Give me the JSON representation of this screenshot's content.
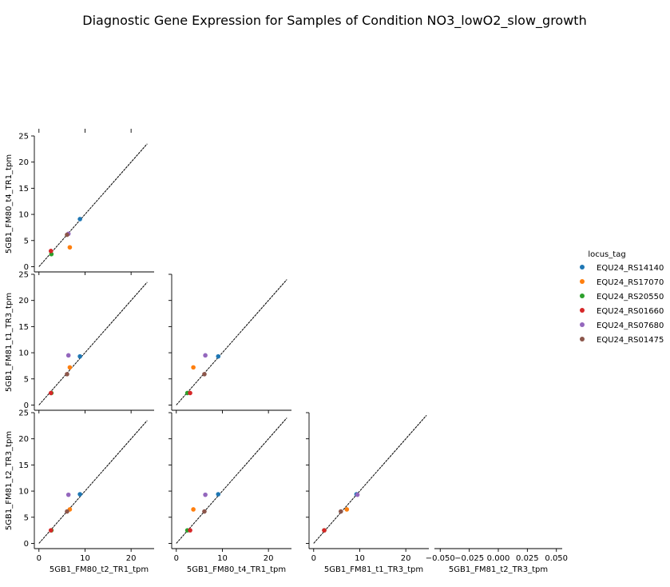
{
  "chart_data": {
    "type": "scatter",
    "title": "Diagnostic Gene Expression for Samples of Condition NO3_lowO2_slow_growth",
    "legend": {
      "title": "locus_tag",
      "placement": "right",
      "entries": [
        {
          "name": "EQU24_RS14140",
          "color": "#1f77b4"
        },
        {
          "name": "EQU24_RS17070",
          "color": "#ff7f0e"
        },
        {
          "name": "EQU24_RS20550",
          "color": "#2ca02c"
        },
        {
          "name": "EQU24_RS01660",
          "color": "#d62728"
        },
        {
          "name": "EQU24_RS07680",
          "color": "#9467bd"
        },
        {
          "name": "EQU24_RS01475",
          "color": "#8c564b"
        }
      ]
    },
    "columns": [
      "5GB1_FM80_t2_TR1_tpm",
      "5GB1_FM80_t4_TR1_tpm",
      "5GB1_FM81_t1_TR3_tpm",
      "5GB1_FM81_t2_TR3_tpm"
    ],
    "rows": [
      "5GB1_FM80_t4_TR1_tpm",
      "5GB1_FM81_t1_TR3_tpm",
      "5GB1_FM81_t2_TR3_tpm"
    ],
    "shared_xlim": [
      -1,
      25
    ],
    "shared_ylim": [
      -1,
      25
    ],
    "x_ticks": [
      0,
      10,
      20
    ],
    "y_ticks": [
      0,
      5,
      10,
      15,
      20,
      25
    ],
    "empty_panel": {
      "xlabel": "5GB1_FM81_t2_TR3_tpm",
      "xlim": [
        -0.055,
        0.055
      ],
      "x_ticks": [
        "−0.050",
        "−0.025",
        "0.000",
        "0.025",
        "0.050"
      ],
      "x_tick_values": [
        -0.05,
        -0.025,
        0,
        0.025,
        0.05
      ]
    },
    "panels": [
      {
        "row": 0,
        "col": 0,
        "diag_to": 23.5,
        "points": [
          [
            8.9,
            9.1
          ],
          [
            6.7,
            3.7
          ],
          [
            2.7,
            2.4
          ],
          [
            2.6,
            3.0
          ],
          [
            6.4,
            6.3
          ],
          [
            6.1,
            6.1
          ]
        ]
      },
      {
        "row": 1,
        "col": 0,
        "diag_to": 23.5,
        "points": [
          [
            8.9,
            9.3
          ],
          [
            6.7,
            7.2
          ],
          [
            2.7,
            2.3
          ],
          [
            2.6,
            2.3
          ],
          [
            6.4,
            9.5
          ],
          [
            6.1,
            5.9
          ]
        ]
      },
      {
        "row": 1,
        "col": 1,
        "diag_to": 24,
        "points": [
          [
            9.1,
            9.3
          ],
          [
            3.7,
            7.2
          ],
          [
            2.4,
            2.3
          ],
          [
            3.0,
            2.3
          ],
          [
            6.3,
            9.5
          ],
          [
            6.1,
            5.9
          ]
        ]
      },
      {
        "row": 2,
        "col": 0,
        "diag_to": 23.5,
        "points": [
          [
            8.9,
            9.4
          ],
          [
            6.7,
            6.5
          ],
          [
            2.7,
            2.5
          ],
          [
            2.6,
            2.5
          ],
          [
            6.4,
            9.3
          ],
          [
            6.1,
            6.1
          ]
        ]
      },
      {
        "row": 2,
        "col": 1,
        "diag_to": 24,
        "points": [
          [
            9.1,
            9.4
          ],
          [
            3.7,
            6.5
          ],
          [
            2.4,
            2.5
          ],
          [
            3.0,
            2.5
          ],
          [
            6.3,
            9.3
          ],
          [
            6.1,
            6.1
          ]
        ]
      },
      {
        "row": 2,
        "col": 2,
        "diag_to": 24.5,
        "points": [
          [
            9.3,
            9.4
          ],
          [
            7.2,
            6.5
          ],
          [
            2.3,
            2.5
          ],
          [
            2.3,
            2.5
          ],
          [
            9.5,
            9.3
          ],
          [
            5.9,
            6.1
          ]
        ]
      }
    ]
  }
}
